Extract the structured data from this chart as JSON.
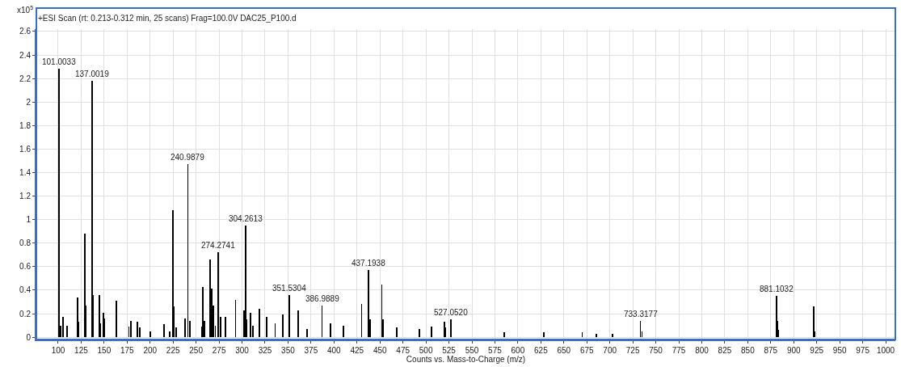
{
  "chart_data": {
    "type": "bar",
    "title": "+ESI Scan (rt: 0.213-0.312 min, 25 scans) Frag=100.0V DAC25_P100.d",
    "xlabel": "Counts vs. Mass-to-Charge (m/z)",
    "x": [
      101.0033,
      103,
      105,
      110,
      121,
      122,
      129,
      130,
      137.0019,
      138,
      145,
      146,
      149,
      150,
      163,
      177,
      179,
      186,
      189,
      200,
      215,
      221,
      225,
      226,
      228,
      238,
      240.9879,
      243,
      256,
      257,
      259,
      265,
      267,
      269,
      271,
      274.2741,
      277,
      282,
      293,
      302,
      304.2613,
      305,
      309,
      312,
      319,
      327,
      336,
      344,
      351.5304,
      361,
      371,
      386.9889,
      396,
      410,
      430,
      437.1938,
      439,
      452,
      453,
      468,
      493,
      506,
      520,
      521,
      527.052,
      585,
      628,
      670,
      685,
      703,
      733.3177,
      735,
      881.1032,
      882,
      883,
      922,
      923
    ],
    "series": [
      {
        "color": "#000000",
        "values": [
          2.28,
          0.1,
          0.17,
          0.1,
          0.34,
          0.13,
          0.88,
          0.27,
          2.18,
          0.36,
          0.36,
          0.12,
          0.21,
          0.16,
          0.31,
          0.09,
          0.14,
          0.13,
          0.08,
          0.05,
          0.11,
          0.05,
          1.08,
          0.26,
          0.08,
          0.16,
          1.47,
          0.14,
          0.09,
          0.43,
          0.14,
          0.66,
          0.41,
          0.27,
          0.1,
          0.72,
          0.17,
          0.17,
          0.32,
          0.23,
          0.95,
          0.15,
          0.21,
          0.1,
          0.24,
          0.17,
          0.12,
          0.19,
          0.36,
          0.23,
          0.07,
          0.27,
          0.12,
          0.1,
          0.28,
          0.57,
          0.15,
          0.45,
          0.15,
          0.08,
          0.07,
          0.09,
          0.13,
          0.08,
          0.15,
          0.04,
          0.04,
          0.04,
          0.03,
          0.03,
          0.14,
          0.05,
          0.35,
          0.14,
          0.06,
          0.26,
          0.05
        ]
      }
    ],
    "annotations": [
      "x10$^{5}$",
      {
        "text": "101.0033",
        "x": 101.0033,
        "y": 2.28
      },
      {
        "text": "137.0019",
        "x": 137.0019,
        "y": 2.18
      },
      {
        "text": "240.9879",
        "x": 240.9879,
        "y": 1.47
      },
      {
        "text": "304.2613",
        "x": 304.2613,
        "y": 0.95
      },
      {
        "text": "274.2741",
        "x": 274.2741,
        "y": 0.72
      },
      {
        "text": "437.1938",
        "x": 437.1938,
        "y": 0.57
      },
      {
        "text": "351.5304",
        "x": 351.5304,
        "y": 0.36
      },
      {
        "text": "881.1032",
        "x": 881.1032,
        "y": 0.35
      },
      {
        "text": "386.9889",
        "x": 386.9889,
        "y": 0.27
      },
      {
        "text": "527.0520",
        "x": 527.052,
        "y": 0.15
      },
      {
        "text": "733.3177",
        "x": 733.3177,
        "y": 0.14
      }
    ],
    "xlim": [
      76.3,
      1010.5
    ],
    "ylim": [
      -0.02,
      2.62
    ],
    "xticks": [
      100,
      125,
      150,
      175,
      200,
      225,
      250,
      275,
      300,
      325,
      350,
      375,
      400,
      425,
      450,
      475,
      500,
      525,
      550,
      575,
      600,
      625,
      650,
      675,
      700,
      725,
      750,
      775,
      800,
      825,
      850,
      875,
      900,
      925,
      950,
      975,
      1000
    ],
    "yticks": [
      0,
      0.2,
      0.4,
      0.6,
      0.8,
      1,
      1.2,
      1.4,
      1.6,
      1.8,
      2,
      2.2,
      2.4,
      2.6
    ],
    "grid": true
  }
}
